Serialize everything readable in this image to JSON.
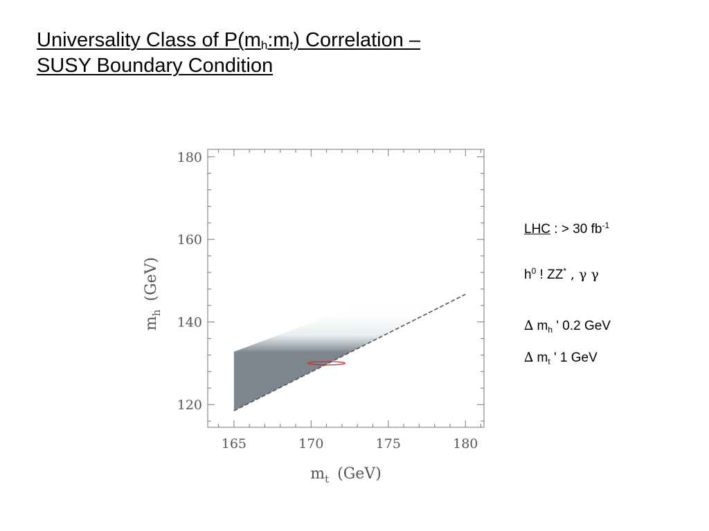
{
  "slide": {
    "title": {
      "line1_a": "Universality Class of P(m",
      "sub_h": "h",
      "colon_m": ":m",
      "sub_t": "t",
      "line1_b": ") Correlation –",
      "line2": "SUSY Boundary Condition"
    },
    "annotations": {
      "lhc_label": "LHC",
      "lhc_sep": " :  > 30 fb",
      "lhc_sup": "-1",
      "process_h": "h",
      "process_sup0": "0",
      "process_mid": " ! ZZ",
      "process_sup_star": "*",
      "process_end": " , γ γ",
      "dmh_delta": "∆",
      "dmh_m": " m",
      "dmh_sub": "h",
      "dmh_rest": " ' 0.2 GeV",
      "dmt_delta": "∆",
      "dmt_m": " m",
      "dmt_sub": "t",
      "dmt_rest": " ' 1 GeV"
    }
  },
  "chart_data": {
    "type": "area",
    "xlabel_main": "m",
    "xlabel_sub": "t",
    "xlabel_unit": "(GeV)",
    "ylabel_main": "m",
    "ylabel_sub": "h",
    "ylabel_unit": "(GeV)",
    "xlim": [
      163.3,
      181.2
    ],
    "ylim": [
      114.5,
      181.8
    ],
    "x_ticks": [
      165,
      170,
      175,
      180
    ],
    "y_ticks": [
      120,
      140,
      160,
      180
    ],
    "band": {
      "x": [
        165,
        180
      ],
      "lower": [
        118.5,
        146.7
      ],
      "upper": [
        132.8,
        153.8
      ]
    },
    "ellipse": {
      "x": 171,
      "y": 130,
      "dx": 1.2,
      "dy": 0.4,
      "color": "#d62828"
    },
    "band_color": "#9aa3aa"
  }
}
